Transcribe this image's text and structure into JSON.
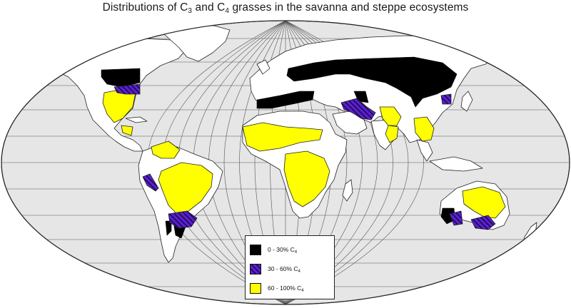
{
  "title": {
    "prefix": "Distributions of C",
    "sub1": "3",
    "middle": " and C",
    "sub2": "4",
    "suffix": " grasses in the savanna and steppe ecosystems"
  },
  "legend": {
    "items": [
      {
        "text": "0 - 30% C",
        "sub": "4",
        "color": "#000000",
        "pattern": "solid"
      },
      {
        "text": "30 - 60% C",
        "sub": "4",
        "color": "#5b1fd6",
        "pattern": "hatched"
      },
      {
        "text": "60 - 100% C",
        "sub": "4",
        "color": "#ffff00",
        "pattern": "solid"
      }
    ]
  },
  "colors": {
    "ocean": "#e6e6e6",
    "land": "#ffffff",
    "c4_low": "#000000",
    "c4_mid": "#5b1fd6",
    "c4_high": "#ffff00"
  }
}
